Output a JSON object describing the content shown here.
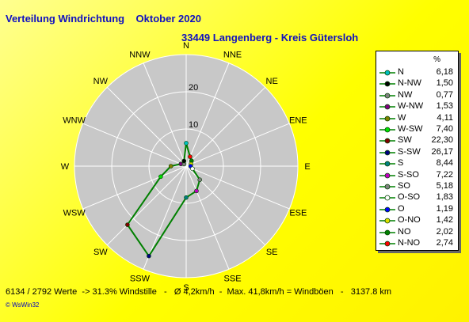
{
  "title": "Verteilung Windrichtung    Oktober 2020",
  "subtitle": "33449 Langenberg - Kreis Gütersloh",
  "footer": "6134 / 2792 Werte  -> 31.3% Windstille   -   Ø 4,2km/h  -  Max. 41,8km/h = Windböen   -   3137.8 km",
  "credit": "© WsWin32",
  "legend_unit": "%",
  "chart_data": {
    "type": "polar-line",
    "r_max": 30,
    "r_ticks": [
      10,
      20
    ],
    "r_tick_labels": [
      "10",
      "20"
    ],
    "line_color": "#008000",
    "directions": [
      "N",
      "NNE",
      "NE",
      "ENE",
      "E",
      "ESE",
      "SE",
      "SSE",
      "S",
      "SSW",
      "SW",
      "WSW",
      "W",
      "WNW",
      "NW",
      "NNW"
    ],
    "series": [
      {
        "values": [
          6.18,
          2.74,
          2.02,
          1.42,
          1.19,
          1.83,
          5.18,
          7.22,
          8.44,
          26.17,
          22.3,
          7.4,
          4.11,
          1.53,
          0.77,
          1.5
        ]
      }
    ],
    "legend": [
      {
        "label": "N",
        "value": "6,18",
        "color": "#00c0c0"
      },
      {
        "label": "N-NW",
        "value": "1,50",
        "color": "#000000"
      },
      {
        "label": "NW",
        "value": "0,77",
        "color": "#808080"
      },
      {
        "label": "W-NW",
        "value": "1,53",
        "color": "#800080"
      },
      {
        "label": "W",
        "value": "4,11",
        "color": "#808000"
      },
      {
        "label": "W-SW",
        "value": "7,40",
        "color": "#00e000"
      },
      {
        "label": "SW",
        "value": "22,30",
        "color": "#800000"
      },
      {
        "label": "S-SW",
        "value": "26,17",
        "color": "#000080"
      },
      {
        "label": "S",
        "value": "8,44",
        "color": "#008080"
      },
      {
        "label": "S-SO",
        "value": "7,22",
        "color": "#c000c0"
      },
      {
        "label": "SO",
        "value": "5,18",
        "color": "#808080"
      },
      {
        "label": "O-SO",
        "value": "1,83",
        "color": "#ffffff"
      },
      {
        "label": "O",
        "value": "1,19",
        "color": "#0000ff"
      },
      {
        "label": "O-NO",
        "value": "1,42",
        "color": "#e0e000"
      },
      {
        "label": "NO",
        "value": "2,02",
        "color": "#008000"
      },
      {
        "label": "N-NO",
        "value": "2,74",
        "color": "#ff0000"
      }
    ]
  }
}
